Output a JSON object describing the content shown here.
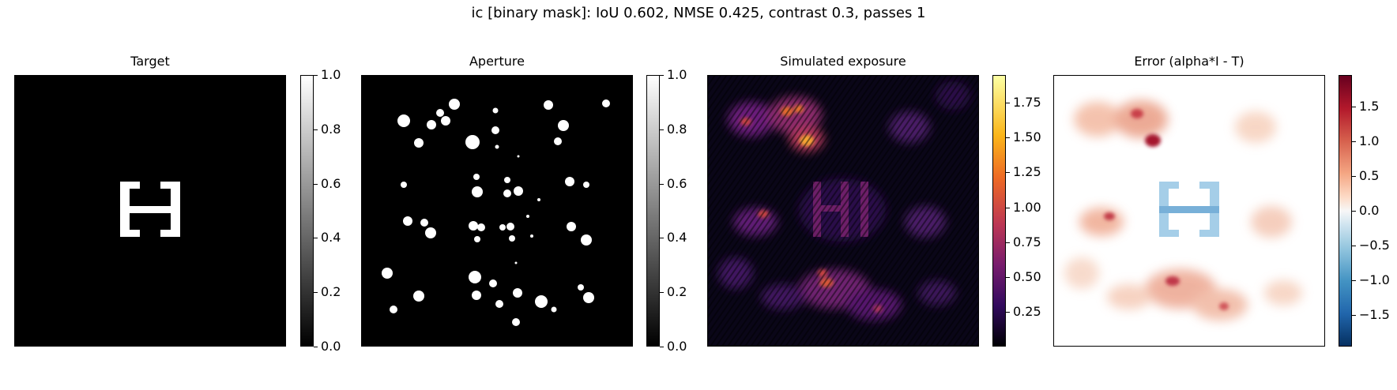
{
  "figure": {
    "suptitle": "ic [binary mask]: IoU 0.602, NMSE 0.425, contrast 0.3, passes 1"
  },
  "chart_data": [
    {
      "type": "heatmap",
      "title": "Target",
      "content": "binary target image: white letter H centered on black background",
      "colormap": "gray",
      "colorbar": {
        "range": [
          0.0,
          1.0
        ],
        "ticks": [
          0.0,
          0.2,
          0.4,
          0.6,
          0.8,
          1.0
        ],
        "tick_labels": [
          "0.0",
          "0.2",
          "0.4",
          "0.6",
          "0.8",
          "1.0"
        ]
      }
    },
    {
      "type": "heatmap",
      "title": "Aperture",
      "content": "binary aperture mask: scattered white dots on black background",
      "colormap": "gray",
      "colorbar": {
        "range": [
          0.0,
          1.0
        ],
        "ticks": [
          0.0,
          0.2,
          0.4,
          0.6,
          0.8,
          1.0
        ],
        "tick_labels": [
          "0.0",
          "0.2",
          "0.4",
          "0.6",
          "0.8",
          "1.0"
        ]
      }
    },
    {
      "type": "heatmap",
      "title": "Simulated exposure",
      "content": "intensity map with bright speckled blobs arranged around a faint H",
      "colormap": "inferno",
      "colorbar": {
        "range": [
          0.0,
          1.95
        ],
        "ticks": [
          0.25,
          0.5,
          0.75,
          1.0,
          1.25,
          1.5,
          1.75
        ],
        "tick_labels": [
          "0.25",
          "0.50",
          "0.75",
          "1.00",
          "1.25",
          "1.50",
          "1.75"
        ]
      }
    },
    {
      "type": "heatmap",
      "title": "Error (alpha*I - T)",
      "content": "signed error map: red blobs (positive) around a blue H (negative) on white",
      "colormap": "RdBu_r",
      "colorbar": {
        "range": [
          -1.95,
          1.95
        ],
        "ticks": [
          -1.5,
          -1.0,
          -0.5,
          0.0,
          0.5,
          1.0,
          1.5
        ],
        "tick_labels": [
          "−1.5",
          "−1.0",
          "−0.5",
          "0.0",
          "0.5",
          "1.0",
          "1.5"
        ]
      }
    }
  ]
}
